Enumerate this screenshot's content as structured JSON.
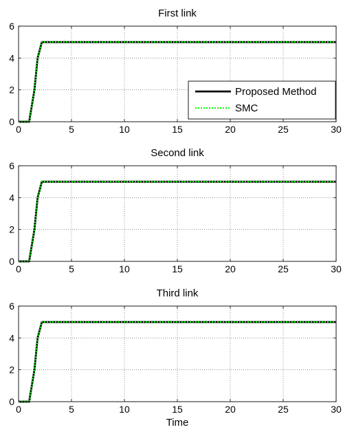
{
  "chart_data": [
    {
      "type": "line",
      "title": "First link",
      "xlabel": "",
      "ylabel": "",
      "xlim": [
        0,
        30
      ],
      "ylim": [
        0,
        6
      ],
      "xticks": [
        0,
        5,
        10,
        15,
        20,
        25,
        30
      ],
      "yticks": [
        0,
        2,
        4,
        6
      ],
      "grid": true,
      "legend": {
        "position": "bottom-right",
        "entries": [
          "Proposed Method",
          "SMC"
        ]
      },
      "series": [
        {
          "name": "Proposed Method",
          "color": "#000000",
          "style": "solid",
          "x": [
            0,
            1,
            1.5,
            1.8,
            2.2,
            30
          ],
          "y": [
            0,
            0,
            2,
            4,
            5,
            5
          ]
        },
        {
          "name": "SMC",
          "color": "#00ff00",
          "style": "dotted",
          "x": [
            0,
            1,
            1.5,
            1.8,
            2.2,
            30
          ],
          "y": [
            0,
            0,
            2,
            4,
            5,
            5
          ]
        }
      ]
    },
    {
      "type": "line",
      "title": "Second link",
      "xlabel": "",
      "ylabel": "",
      "xlim": [
        0,
        30
      ],
      "ylim": [
        0,
        6
      ],
      "xticks": [
        0,
        5,
        10,
        15,
        20,
        25,
        30
      ],
      "yticks": [
        0,
        2,
        4,
        6
      ],
      "grid": true,
      "series": [
        {
          "name": "Proposed Method",
          "color": "#000000",
          "style": "solid",
          "x": [
            0,
            1,
            1.5,
            1.8,
            2.2,
            30
          ],
          "y": [
            0,
            0,
            2,
            4,
            5,
            5
          ]
        },
        {
          "name": "SMC",
          "color": "#00ff00",
          "style": "dotted",
          "x": [
            0,
            1,
            1.5,
            1.8,
            2.2,
            30
          ],
          "y": [
            0,
            0,
            2,
            4,
            5,
            5
          ]
        }
      ]
    },
    {
      "type": "line",
      "title": "Third link",
      "xlabel": "Time",
      "ylabel": "",
      "xlim": [
        0,
        30
      ],
      "ylim": [
        0,
        6
      ],
      "xticks": [
        0,
        5,
        10,
        15,
        20,
        25,
        30
      ],
      "yticks": [
        0,
        2,
        4,
        6
      ],
      "grid": true,
      "series": [
        {
          "name": "Proposed Method",
          "color": "#000000",
          "style": "solid",
          "x": [
            0,
            1,
            1.5,
            1.8,
            2.2,
            30
          ],
          "y": [
            0,
            0,
            2,
            4,
            5,
            5
          ]
        },
        {
          "name": "SMC",
          "color": "#00ff00",
          "style": "dotted",
          "x": [
            0,
            1,
            1.5,
            1.8,
            2.2,
            30
          ],
          "y": [
            0,
            0,
            2,
            4,
            5,
            5
          ]
        }
      ]
    }
  ]
}
